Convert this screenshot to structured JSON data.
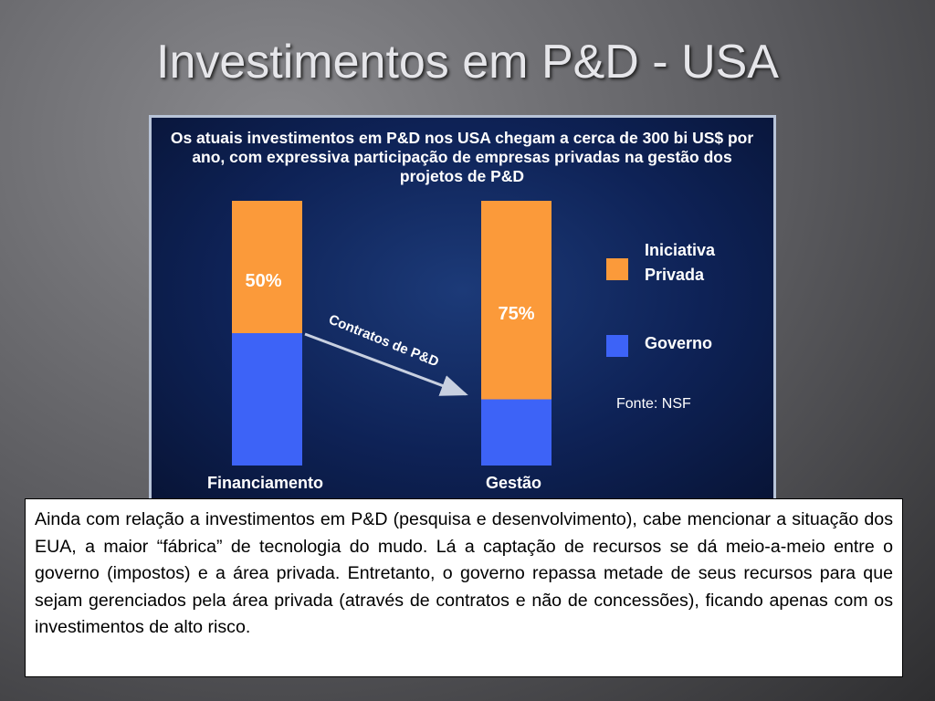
{
  "title": "Investimentos em P&D - USA",
  "body": "Ainda com relação a investimentos em P&D (pesquisa e desenvolvimento), cabe mencionar a situação dos EUA, a maior “fábrica” de tecnologia do mudo. Lá a captação de recursos se dá meio-a-meio entre o governo (impostos) e a área privada. Entretanto, o governo repassa metade de seus recursos para que sejam gerenciados pela área privada (através de contratos e não de concessões), ficando apenas com os investimentos de alto risco.",
  "chart_data": {
    "type": "stacked_bar",
    "title": "Os atuais investimentos em P&D nos USA chegam a cerca de 300 bi US$ por ano, com expressiva participação de empresas privadas na gestão dos projetos de P&D",
    "categories": [
      "Financiamento",
      "Gestão"
    ],
    "series": [
      {
        "name": "Iniciativa Privada",
        "color": "#fb9a3a",
        "values": [
          50,
          75
        ],
        "value_labels": [
          "50%",
          "75%"
        ]
      },
      {
        "name": "Governo",
        "color": "#3d63f7",
        "values": [
          50,
          25
        ]
      }
    ],
    "ylim": [
      0,
      100
    ],
    "annotation": "Contratos de P&D",
    "source": "Fonte: NSF"
  }
}
